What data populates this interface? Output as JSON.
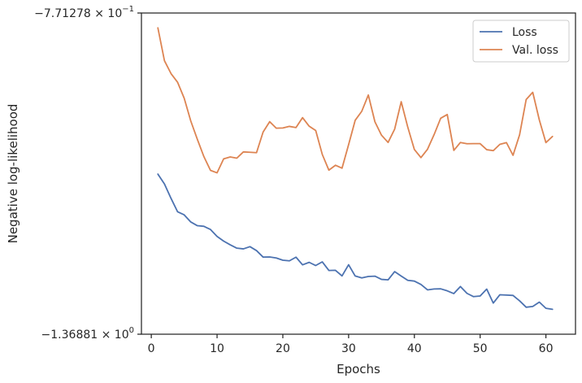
{
  "chart_data": {
    "type": "line",
    "xlabel": "Epochs",
    "ylabel": "Negative log-likelihood",
    "xlim": [
      -1.5,
      64.5
    ],
    "ylim": [
      -1.36881,
      -0.771278
    ],
    "xticks": [
      0,
      10,
      20,
      30,
      40,
      50,
      60
    ],
    "xtick_labels": [
      "0",
      "10",
      "20",
      "30",
      "40",
      "50",
      "60"
    ],
    "yticks": [
      {
        "value": -0.771278,
        "mantissa": "−7.71278 × 10",
        "exponent": "−1"
      },
      {
        "value": -1.36881,
        "mantissa": "−1.36881 × 10",
        "exponent": "0"
      }
    ],
    "grid": false,
    "legend_position": "top-right",
    "x": [
      1,
      2,
      3,
      4,
      5,
      6,
      7,
      8,
      9,
      10,
      11,
      12,
      13,
      14,
      15,
      16,
      17,
      18,
      19,
      20,
      21,
      22,
      23,
      24,
      25,
      26,
      27,
      28,
      29,
      30,
      31,
      32,
      33,
      34,
      35,
      36,
      37,
      38,
      39,
      40,
      41,
      42,
      43,
      44,
      45,
      46,
      47,
      48,
      49,
      50,
      51,
      52,
      53,
      54,
      55,
      56,
      57,
      58,
      59,
      60,
      61
    ],
    "series": [
      {
        "name": "Loss",
        "color": "#4c72b0",
        "values": [
          -1.0709,
          -1.0894,
          -1.1161,
          -1.1411,
          -1.1468,
          -1.16,
          -1.1669,
          -1.1681,
          -1.174,
          -1.1869,
          -1.1956,
          -1.2025,
          -1.2087,
          -1.2101,
          -1.2059,
          -1.2133,
          -1.2254,
          -1.2251,
          -1.227,
          -1.2311,
          -1.2323,
          -1.2255,
          -1.2398,
          -1.2351,
          -1.241,
          -1.2342,
          -1.2502,
          -1.2499,
          -1.2604,
          -1.2395,
          -1.2605,
          -1.264,
          -1.2614,
          -1.2608,
          -1.2668,
          -1.2677,
          -1.2524,
          -1.2606,
          -1.2686,
          -1.27,
          -1.2763,
          -1.2863,
          -1.2847,
          -1.2844,
          -1.2881,
          -1.2932,
          -1.2801,
          -1.2928,
          -1.2989,
          -1.2977,
          -1.2849,
          -1.3109,
          -1.2954,
          -1.296,
          -1.2967,
          -1.3067,
          -1.3186,
          -1.3172,
          -1.3091,
          -1.3206,
          -1.3225
        ]
      },
      {
        "name": "Val. loss",
        "color": "#dd8452",
        "values": [
          -0.7989,
          -0.8601,
          -0.884,
          -0.9002,
          -0.9297,
          -0.9721,
          -1.0062,
          -1.0385,
          -1.064,
          -1.0686,
          -1.0427,
          -1.0391,
          -1.0413,
          -1.0297,
          -1.0303,
          -1.0311,
          -0.9927,
          -0.9734,
          -0.9855,
          -0.9852,
          -0.9822,
          -0.9844,
          -0.9659,
          -0.9818,
          -0.9898,
          -1.0344,
          -1.0636,
          -1.0545,
          -1.06,
          -1.0162,
          -0.9709,
          -0.9541,
          -0.9238,
          -0.9736,
          -0.9985,
          -1.0121,
          -0.9874,
          -0.9363,
          -0.9837,
          -1.0252,
          -1.0403,
          -1.0247,
          -0.9975,
          -0.9671,
          -0.9601,
          -1.0268,
          -1.0121,
          -1.0145,
          -1.0143,
          -1.0143,
          -1.0255,
          -1.0273,
          -1.0156,
          -1.0124,
          -1.036,
          -0.9978,
          -0.9322,
          -0.9188,
          -0.9702,
          -1.0124,
          -1.0009
        ]
      }
    ]
  }
}
